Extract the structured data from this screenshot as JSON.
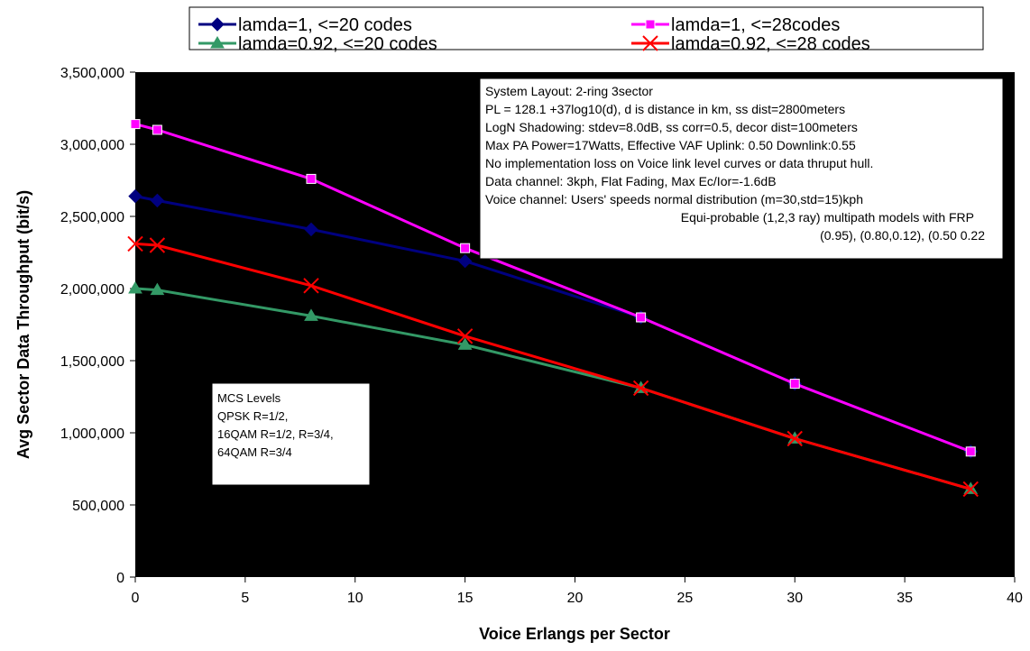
{
  "chart_data": {
    "type": "line",
    "xlabel": "Voice Erlangs per Sector",
    "ylabel": "Avg Sector Data Throughput (bit/s)",
    "xlim": [
      0,
      40
    ],
    "ylim": [
      0,
      3500000
    ],
    "x_ticks": [
      "0",
      "5",
      "10",
      "15",
      "20",
      "25",
      "30",
      "35",
      "40"
    ],
    "y_ticks": [
      "0",
      "500,000",
      "1,000,000",
      "1,500,000",
      "2,000,000",
      "2,500,000",
      "3,000,000",
      "3,500,000"
    ],
    "grid": false,
    "legend_position": "top",
    "series": [
      {
        "name": "lamda=1, <=20 codes",
        "color": "#000080",
        "marker": "diamond",
        "x": [
          0,
          1,
          8,
          15,
          23,
          30,
          38
        ],
        "y": [
          2640000,
          2610000,
          2410000,
          2190000,
          1800000,
          1340000,
          870000
        ]
      },
      {
        "name": "lamda=1, <=28codes",
        "color": "#ff00ff",
        "marker": "square",
        "x": [
          0,
          1,
          8,
          15,
          23,
          30,
          38
        ],
        "y": [
          3140000,
          3100000,
          2760000,
          2280000,
          1800000,
          1340000,
          870000
        ]
      },
      {
        "name": "lamda=0.92, <=20 codes",
        "color": "#339966",
        "marker": "triangle",
        "x": [
          0,
          1,
          8,
          15,
          23,
          30,
          38
        ],
        "y": [
          2000000,
          1990000,
          1810000,
          1610000,
          1310000,
          960000,
          610000
        ]
      },
      {
        "name": "lamda=0.92, <=28 codes",
        "color": "#ff0000",
        "marker": "x",
        "x": [
          0,
          1,
          8,
          15,
          23,
          30,
          38
        ],
        "y": [
          2310000,
          2300000,
          2020000,
          1670000,
          1310000,
          960000,
          610000
        ]
      }
    ],
    "annotations": {
      "system_box": [
        "System Layout: 2-ring 3sector",
        "PL = 128.1 +37log10(d), d is distance in km, ss dist=2800meters",
        "LogN Shadowing: stdev=8.0dB, ss corr=0.5, decor dist=100meters",
        "Max PA Power=17Watts,  Effective VAF Uplink: 0.50  Downlink:0.55",
        "No implementation loss on Voice link level curves or data thruput hull.",
        "Data channel: 3kph, Flat Fading, Max Ec/Ior=-1.6dB",
        "Voice channel: Users' speeds normal distribution (m=30,std=15)kph",
        "Equi-probable (1,2,3 ray) multipath models with FRP",
        "(0.95), (0.80,0.12), (0.50 0.22"
      ],
      "mcs_box": [
        "MCS Levels",
        "QPSK R=1/2,",
        "16QAM R=1/2, R=3/4,",
        "64QAM R=3/4"
      ]
    }
  }
}
